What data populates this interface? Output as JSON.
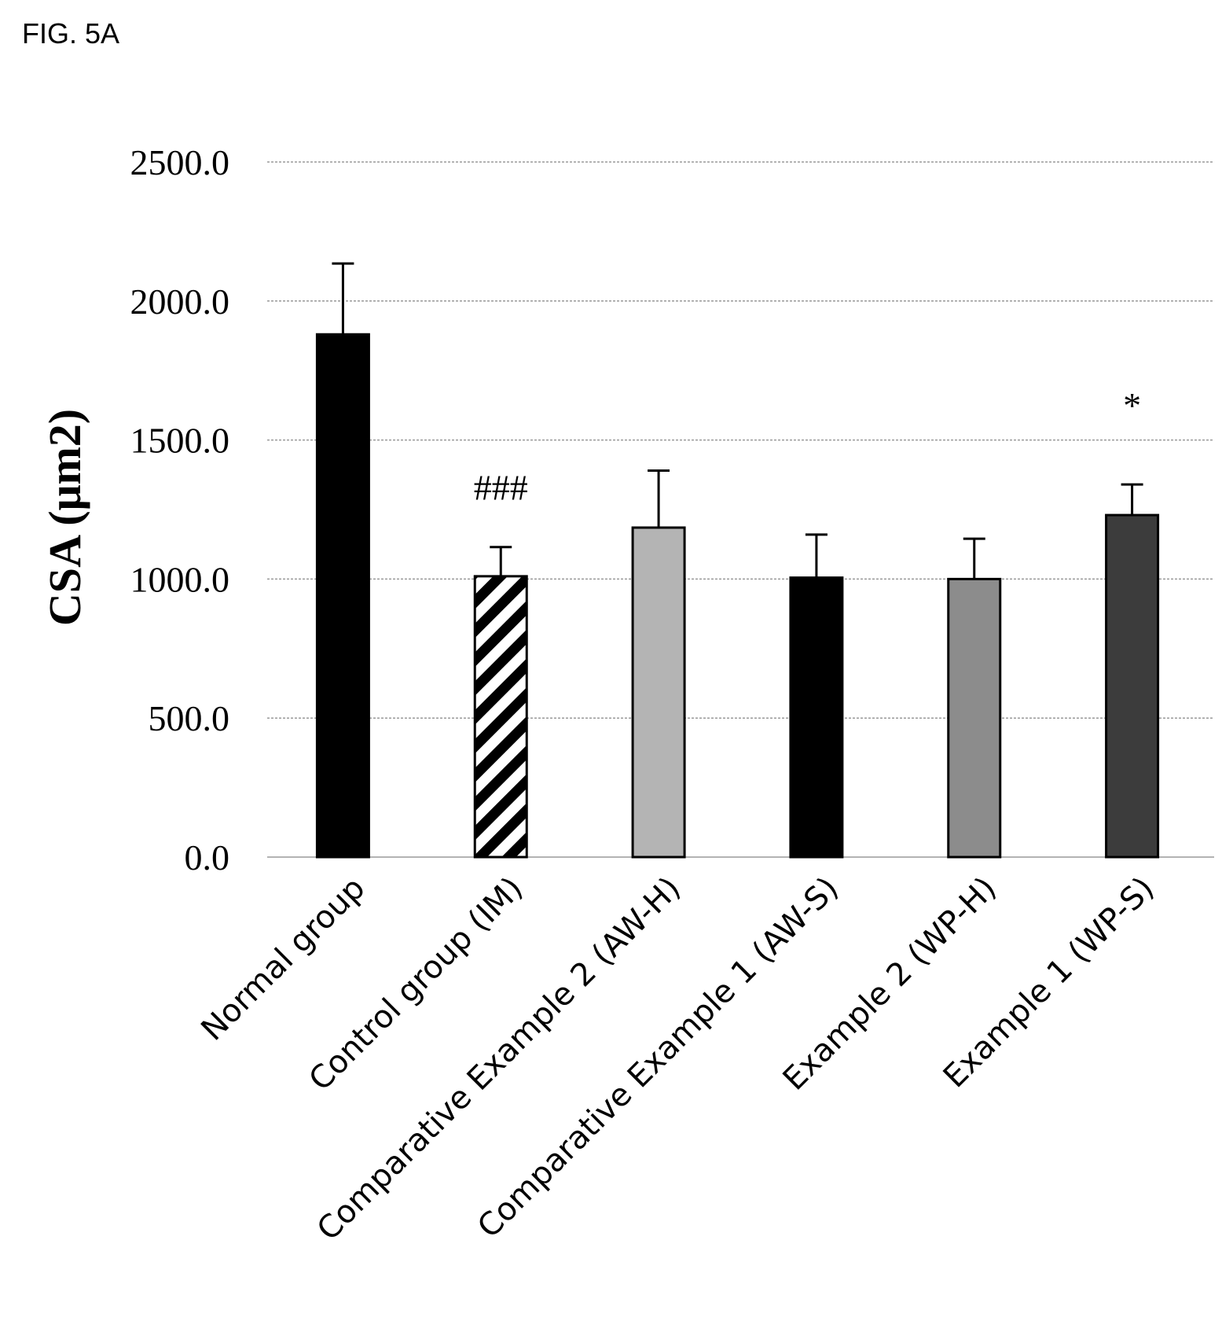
{
  "figure_label": "FIG. 5A",
  "chart_data": {
    "type": "bar",
    "title": "",
    "xlabel": "",
    "ylabel": "CSA (μm2)",
    "ylim": [
      0,
      2500
    ],
    "y_ticks": [
      "0.0",
      "500.0",
      "1000.0",
      "1500.0",
      "2000.0",
      "2500.0"
    ],
    "grid": true,
    "categories": [
      "Normal group",
      "Control group (IM)",
      "Comparative Example 2 (AW-H)",
      "Comparative Example 1 (AW-S)",
      "Example 2 (WP-H)",
      "Example 1 (WP-S)"
    ],
    "values": [
      1880,
      1010,
      1185,
      1005,
      1000,
      1230
    ],
    "errors": [
      255,
      105,
      205,
      155,
      145,
      110
    ],
    "annotations": [
      "",
      "###",
      "",
      "",
      "",
      "*"
    ],
    "colors": [
      "#000000",
      "hatch",
      "#b4b4b4",
      "#000000",
      "#8c8c8c",
      "#3c3c3c"
    ]
  }
}
